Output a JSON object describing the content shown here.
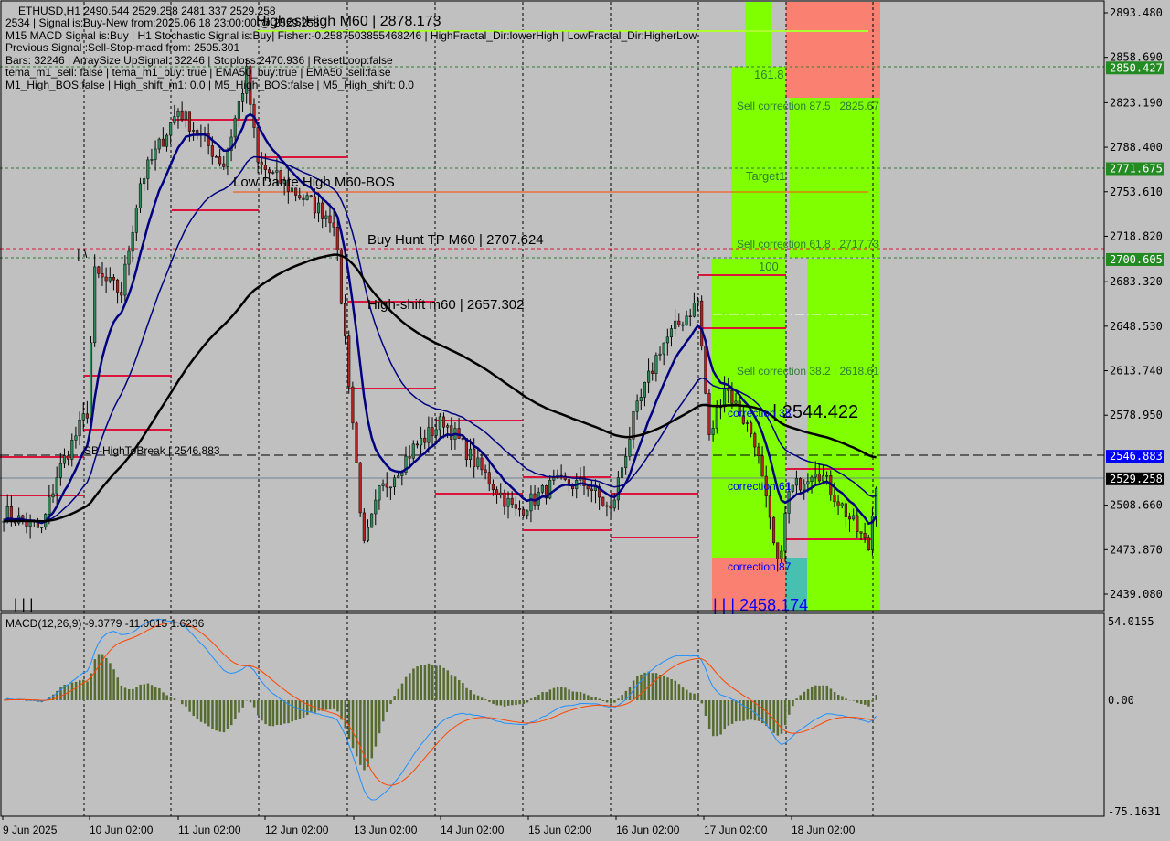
{
  "header": {
    "symbol_line": "ETHUSD,H1  2490.544 2529.258 2481.337 2529.258",
    "info_lines": [
      "2534 | Signal is:Buy-New from:2025.06.18 23:00:00 @ 2529.258",
      "M15 MACD Signal is:Buy | H1 Stochastic Signal is:Buy| Fisher:-0.2587503855468246 | HighFractal_Dir:lowerHigh | LowFractal_Dir:HigherLow",
      "Previous Signal :Sell-Stop-macd from: 2505.301",
      "Bars: 32246 | ArraySize UpSignal: 32246 | Stoploss:2470.936 | ResetLoop:false",
      "tema_m1_sell: false | tema_m1_buy: true | EMA50_buy:true | EMA50_sell:false",
      "M1_High_BOS:false | High_shift_m1: 0.0 | M5_High_BOS:false | M5_High_shift: 0.0"
    ]
  },
  "annotations": {
    "highest_high": "HighestHigh  M60 | 2878.173",
    "low_dante": "Low Dante High  M60-BOS",
    "buy_hunt": "Buy Hunt TP M60 | 2707.624",
    "high_shift": "High-shift m60 | 2657.302",
    "sb_high": "SB-HighToBreak | 2546.883",
    "fib_1618": "161.8",
    "sell_875": "Sell correction 87.5 | 2825.67",
    "target1": "Target1",
    "sell_618": "Sell correction 61.8 | 2717.73",
    "fib_100": "100",
    "sell_382": "Sell correction 38.2 | 2618.61",
    "level_2544": "| 2544.422",
    "corr_38": "correction 38",
    "corr_61": "correction 61",
    "corr_87": "correction 87",
    "level_2458": "| | | 2458.174",
    "marks_left": "| | |",
    "marks_mid": "| \\"
  },
  "colors": {
    "background": "#c0c0c0",
    "zone_green": "#80ff00",
    "zone_salmon": "#fa8072",
    "zone_teal": "#48c0b0",
    "level_red": "#dc143c",
    "ema_fast": "#000080",
    "ema_slow": "#000000",
    "macd_line": "#1e90ff",
    "signal_line": "#ff4500",
    "histogram": "#556b2f",
    "tag_green": "#228b22",
    "tag_blue": "#0000ff",
    "tag_black": "#000000"
  },
  "price_axis": {
    "ticks": [
      "2893.480",
      "2858.690",
      "2823.190",
      "2788.400",
      "2753.610",
      "2718.820",
      "2683.320",
      "2648.530",
      "2613.740",
      "2578.950",
      "2508.660",
      "2473.870",
      "2439.080"
    ],
    "tags": [
      {
        "label": "2850.427",
        "color": "#228b22"
      },
      {
        "label": "2771.675",
        "color": "#228b22"
      },
      {
        "label": "2700.605",
        "color": "#228b22"
      },
      {
        "label": "2546.883",
        "color": "#0000ff"
      },
      {
        "label": "2529.258",
        "color": "#000000"
      }
    ]
  },
  "macd": {
    "label": "MACD(12,26,9) -9.3779 -11.0015 1.6236",
    "ticks": [
      "54.0155",
      "0.00",
      "-75.1631"
    ]
  },
  "time_axis": [
    "9 Jun 2025",
    "10 Jun 02:00",
    "11 Jun 02:00",
    "12 Jun 02:00",
    "13 Jun 02:00",
    "14 Jun 02:00",
    "15 Jun 02:00",
    "16 Jun 02:00",
    "17 Jun 02:00",
    "18 Jun 02:00"
  ],
  "chart_data": {
    "type": "candlestick",
    "symbol": "ETHUSD",
    "timeframe": "H1",
    "ylim": [
      2439.08,
      2893.48
    ],
    "close_path": [
      [
        0,
        2503
      ],
      [
        10,
        2489
      ],
      [
        14,
        2532
      ],
      [
        22,
        2582
      ],
      [
        24,
        2689
      ],
      [
        31,
        2675
      ],
      [
        36,
        2761
      ],
      [
        46,
        2818
      ],
      [
        58,
        2775
      ],
      [
        64,
        2846
      ],
      [
        67,
        2775
      ],
      [
        77,
        2753
      ],
      [
        87,
        2732
      ],
      [
        90,
        2639
      ],
      [
        95,
        2475
      ],
      [
        99,
        2518
      ],
      [
        108,
        2553
      ],
      [
        116,
        2575
      ],
      [
        125,
        2539
      ],
      [
        135,
        2503
      ],
      [
        145,
        2525
      ],
      [
        154,
        2525
      ],
      [
        160,
        2503
      ],
      [
        166,
        2575
      ],
      [
        173,
        2632
      ],
      [
        183,
        2668
      ],
      [
        186,
        2560
      ],
      [
        190,
        2603
      ],
      [
        198,
        2560
      ],
      [
        204,
        2460
      ],
      [
        207,
        2518
      ],
      [
        214,
        2539
      ],
      [
        222,
        2503
      ],
      [
        228,
        2475
      ],
      [
        230,
        2528
      ]
    ]
  }
}
